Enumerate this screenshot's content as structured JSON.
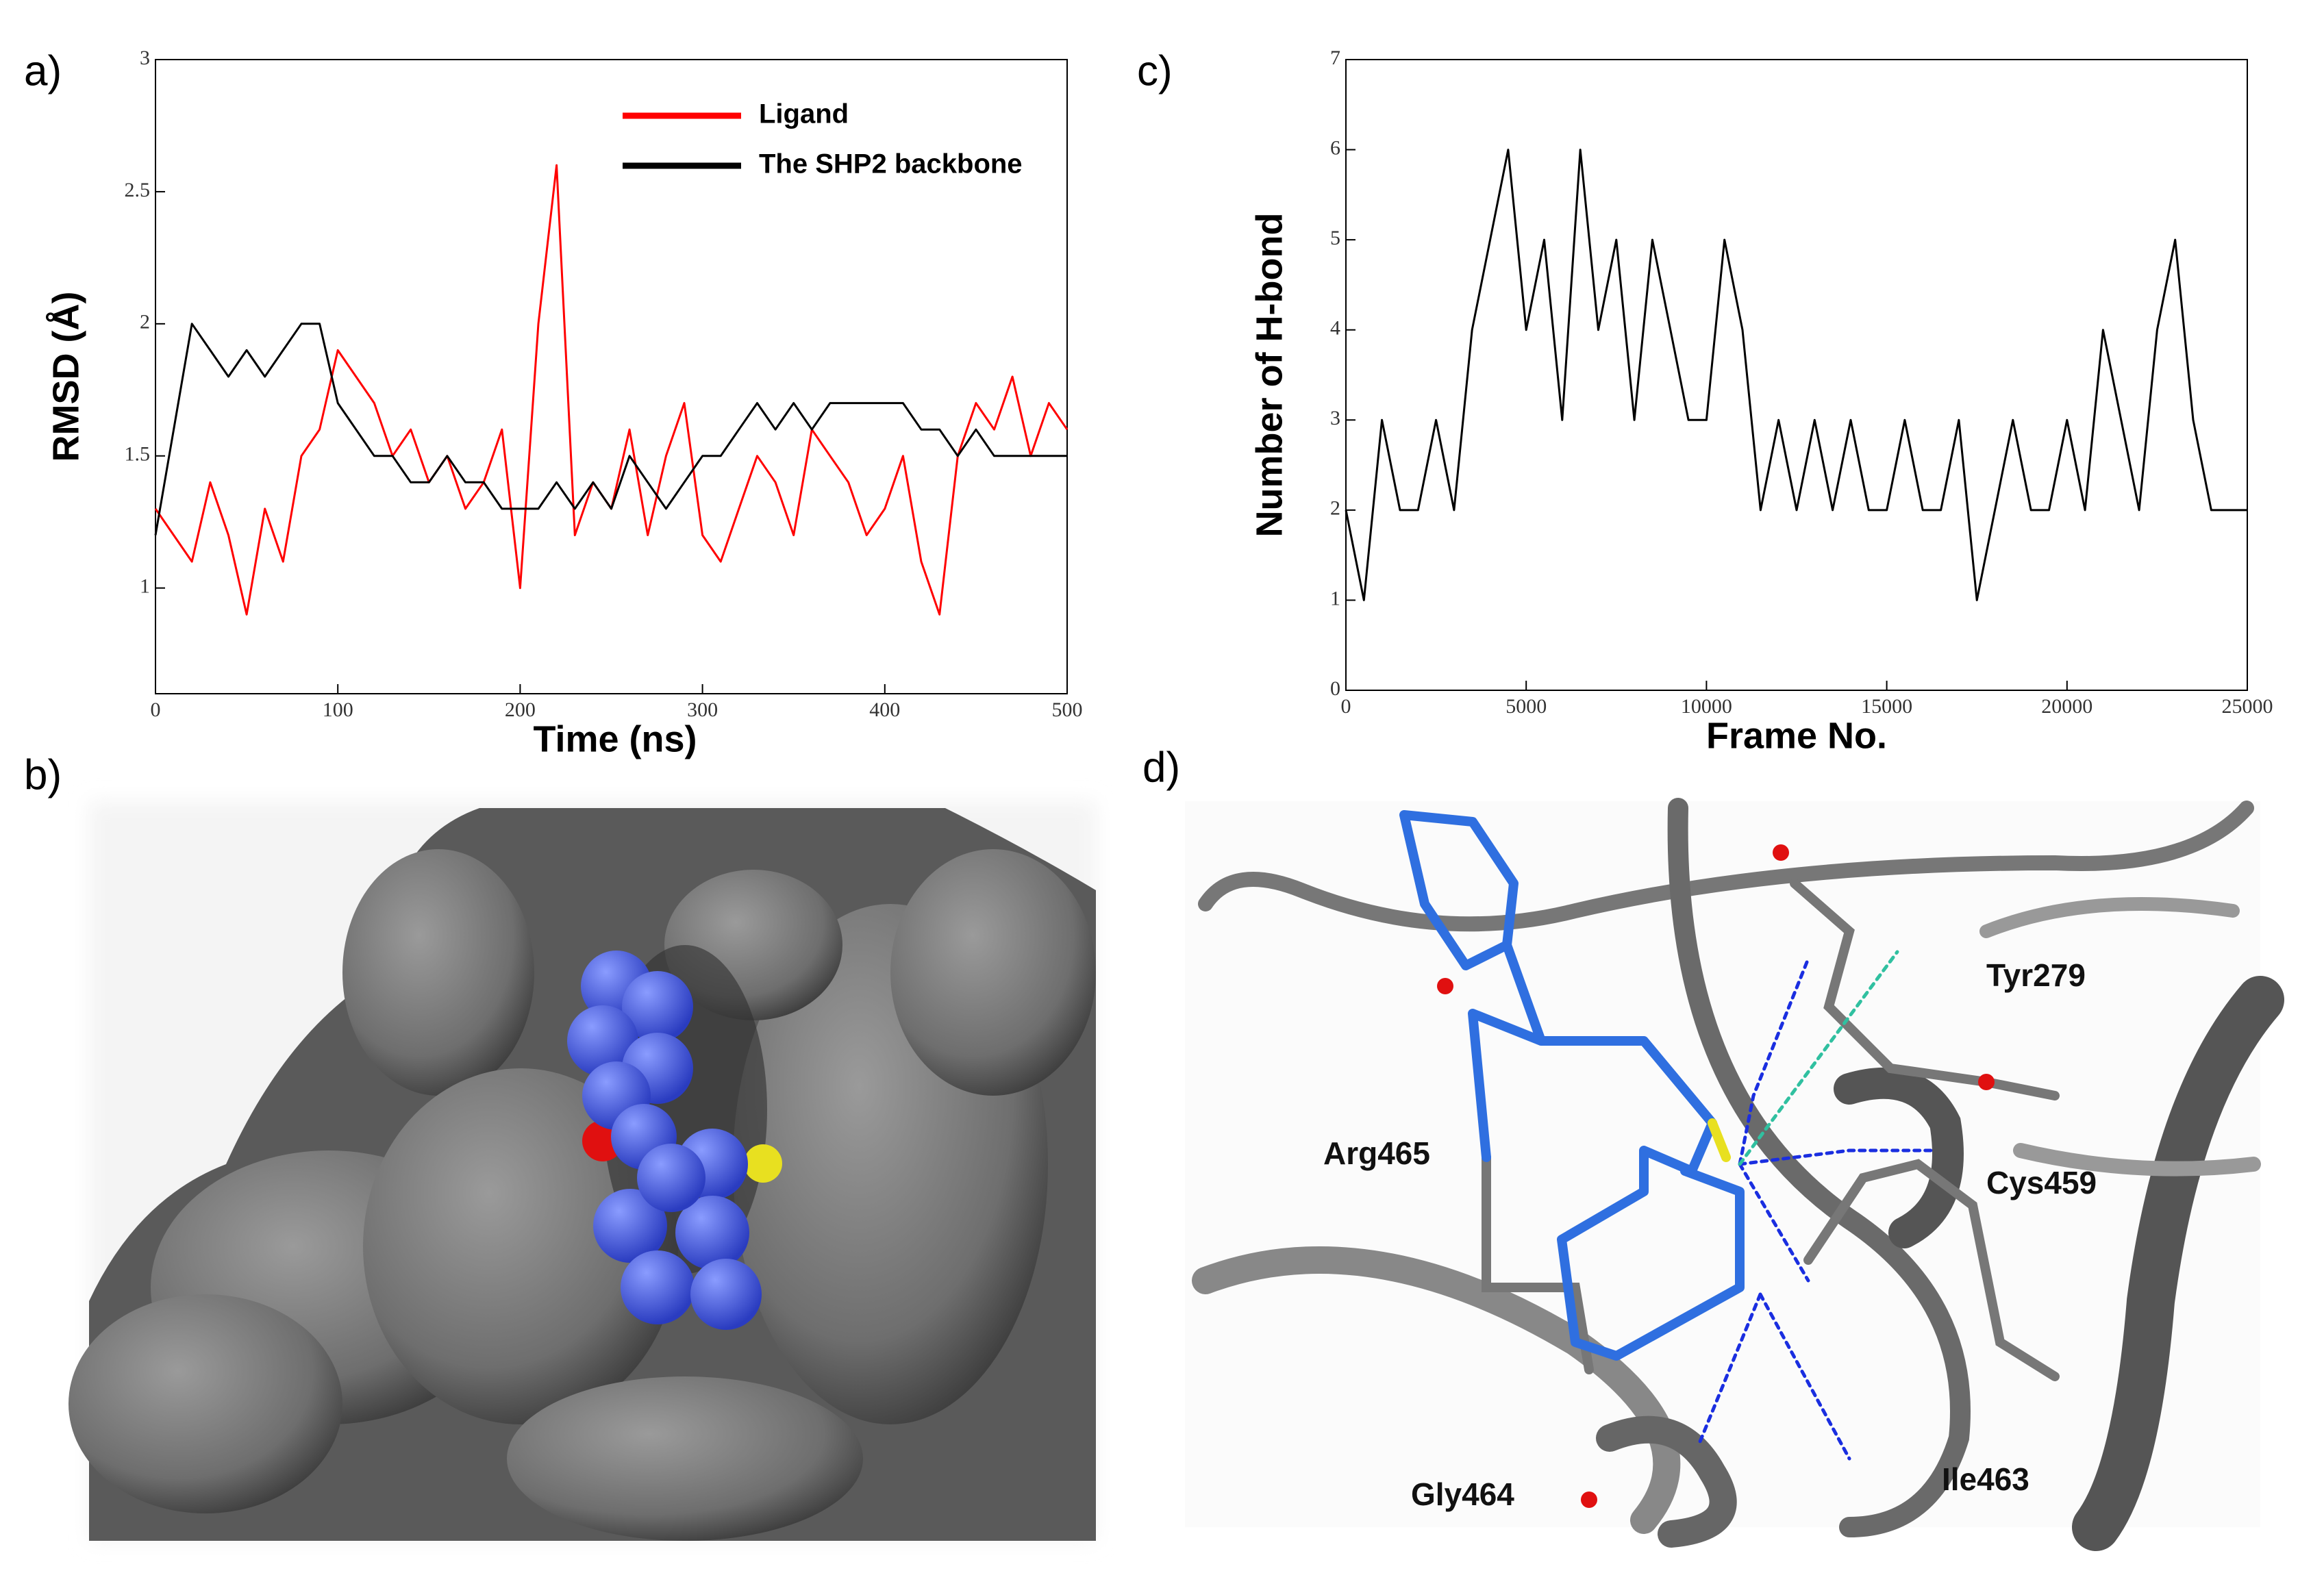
{
  "panels": {
    "a": "a)",
    "b": "b)",
    "c": "c)",
    "d": "d)"
  },
  "residues": [
    "Tyr279",
    "Arg465",
    "Cys459",
    "Gly464",
    "Ile463"
  ],
  "chart_data": [
    {
      "type": "line",
      "xlabel": "Time (ns)",
      "ylabel": "RMSD (Å)",
      "x": [
        0,
        10,
        20,
        30,
        40,
        50,
        60,
        70,
        80,
        90,
        100,
        110,
        120,
        130,
        140,
        150,
        160,
        170,
        180,
        190,
        200,
        210,
        220,
        230,
        240,
        250,
        260,
        270,
        280,
        290,
        300,
        310,
        320,
        330,
        340,
        350,
        360,
        370,
        380,
        390,
        400,
        410,
        420,
        430,
        440,
        450,
        460,
        470,
        480,
        490,
        500
      ],
      "series": [
        {
          "name": "Ligand",
          "color": "#ff0000",
          "values": [
            1.3,
            1.2,
            1.1,
            1.4,
            1.2,
            0.9,
            1.3,
            1.1,
            1.5,
            1.6,
            1.9,
            1.8,
            1.7,
            1.5,
            1.6,
            1.4,
            1.5,
            1.3,
            1.4,
            1.6,
            1.0,
            2.0,
            2.6,
            1.2,
            1.4,
            1.3,
            1.6,
            1.2,
            1.5,
            1.7,
            1.2,
            1.1,
            1.3,
            1.5,
            1.4,
            1.2,
            1.6,
            1.5,
            1.4,
            1.2,
            1.3,
            1.5,
            1.1,
            0.9,
            1.5,
            1.7,
            1.6,
            1.8,
            1.5,
            1.7,
            1.6
          ]
        },
        {
          "name": "The SHP2 backbone",
          "color": "#000000",
          "values": [
            1.2,
            1.6,
            2.0,
            1.9,
            1.8,
            1.9,
            1.8,
            1.9,
            2.0,
            2.0,
            1.7,
            1.6,
            1.5,
            1.5,
            1.4,
            1.4,
            1.5,
            1.4,
            1.4,
            1.3,
            1.3,
            1.3,
            1.4,
            1.3,
            1.4,
            1.3,
            1.5,
            1.4,
            1.3,
            1.4,
            1.5,
            1.5,
            1.6,
            1.7,
            1.6,
            1.7,
            1.6,
            1.7,
            1.7,
            1.7,
            1.7,
            1.7,
            1.6,
            1.6,
            1.5,
            1.6,
            1.5,
            1.5,
            1.5,
            1.5,
            1.5
          ]
        }
      ],
      "xlim": [
        0,
        500
      ],
      "ylim": [
        0.6,
        3
      ],
      "xticks": [
        0,
        100,
        200,
        300,
        400,
        500
      ],
      "yticks": [
        1,
        1.5,
        2,
        2.5,
        3
      ]
    },
    {
      "type": "line",
      "xlabel": "Frame No.",
      "ylabel": "Number of H-bond",
      "x": [
        0,
        500,
        1000,
        1500,
        2000,
        2500,
        3000,
        3500,
        4000,
        4500,
        5000,
        5500,
        6000,
        6500,
        7000,
        7500,
        8000,
        8500,
        9000,
        9500,
        10000,
        10500,
        11000,
        11500,
        12000,
        12500,
        13000,
        13500,
        14000,
        14500,
        15000,
        15500,
        16000,
        16500,
        17000,
        17500,
        18000,
        18500,
        19000,
        19500,
        20000,
        20500,
        21000,
        21500,
        22000,
        22500,
        23000,
        23500,
        24000,
        24500,
        25000
      ],
      "series": [
        {
          "name": "H-bond",
          "color": "#000000",
          "values": [
            2,
            1,
            3,
            2,
            2,
            3,
            2,
            4,
            5,
            6,
            4,
            5,
            3,
            6,
            4,
            5,
            3,
            5,
            4,
            3,
            3,
            5,
            4,
            2,
            3,
            2,
            3,
            2,
            3,
            2,
            2,
            3,
            2,
            2,
            3,
            1,
            2,
            3,
            2,
            2,
            3,
            2,
            4,
            3,
            2,
            4,
            5,
            3,
            2,
            2,
            2
          ]
        }
      ],
      "xlim": [
        0,
        25000
      ],
      "ylim": [
        0,
        7
      ],
      "xticks": [
        0,
        5000,
        10000,
        15000,
        20000,
        25000
      ],
      "yticks": [
        0,
        1,
        2,
        3,
        4,
        5,
        6,
        7
      ]
    }
  ]
}
